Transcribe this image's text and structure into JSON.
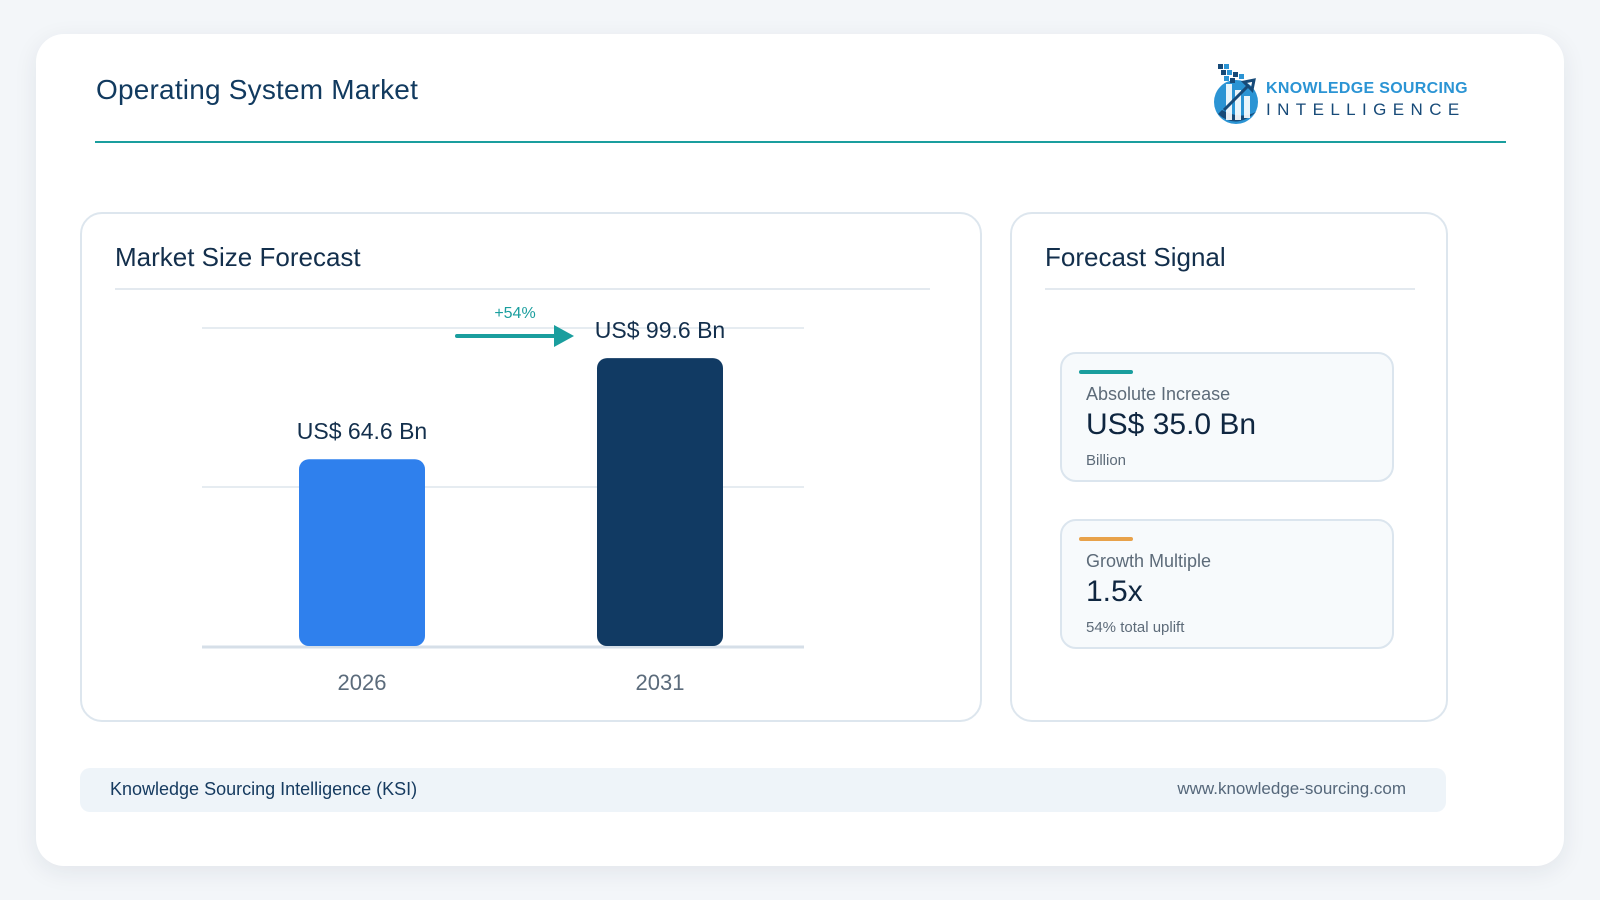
{
  "header": {
    "title": "Operating System Market",
    "logo": {
      "line1": "KNOWLEDGE SOURCING",
      "line2": "INTELLIGENCE"
    }
  },
  "left_panel": {
    "title": "Market Size Forecast"
  },
  "right_panel": {
    "title": "Forecast Signal",
    "metrics": [
      {
        "label": "Absolute Increase",
        "value": "US$ 35.0 Bn",
        "sub": "Billion",
        "accent": "#1a9e9e"
      },
      {
        "label": "Growth Multiple",
        "value": "1.5x",
        "sub": "54% total uplift",
        "accent": "#e8a24a"
      }
    ]
  },
  "chart_data": {
    "type": "bar",
    "categories": [
      "2026",
      "2031"
    ],
    "values": [
      64.6,
      99.6
    ],
    "value_labels": [
      "US$ 64.6 Bn",
      "US$ 99.6 Bn"
    ],
    "growth_label": "+54%",
    "colors": [
      "#2f80ed",
      "#113a63"
    ],
    "ylim": [
      0,
      110
    ],
    "grid": true
  },
  "footer": {
    "left": "Knowledge Sourcing Intelligence (KSI)",
    "right": "www.knowledge-sourcing.com"
  },
  "colors": {
    "accent": "#1a9e9e",
    "navy": "#113a63",
    "blue": "#2f80ed"
  }
}
